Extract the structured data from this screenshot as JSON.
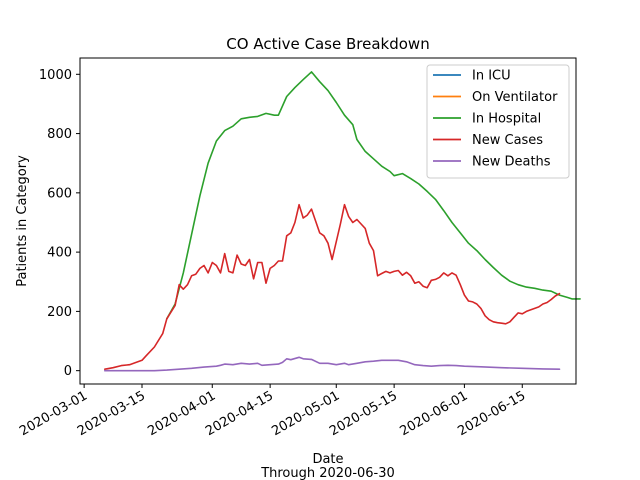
{
  "chart_data": {
    "type": "line",
    "title": "CO Active Case Breakdown",
    "xlabel": "Date",
    "xlabel_sub": "Through 2020-06-30",
    "ylabel": "Patients in Category",
    "xlim": [
      "2020-02-29",
      "2020-06-28"
    ],
    "ylim": [
      -45,
      1055
    ],
    "x_ticks": [
      "2020-03-01",
      "2020-03-15",
      "2020-04-01",
      "2020-04-15",
      "2020-05-01",
      "2020-05-15",
      "2020-06-01",
      "2020-06-15"
    ],
    "y_ticks": [
      0,
      200,
      400,
      600,
      800,
      1000
    ],
    "legend_position": "upper right",
    "grid": false,
    "series": [
      {
        "name": "In ICU",
        "color": "#1f77b4",
        "points": []
      },
      {
        "name": "On Ventilator",
        "color": "#ff7f0e",
        "points": []
      },
      {
        "name": "In Hospital",
        "color": "#2ca02c",
        "points": [
          [
            "2020-03-21",
            175
          ],
          [
            "2020-03-23",
            225
          ],
          [
            "2020-03-25",
            330
          ],
          [
            "2020-03-27",
            460
          ],
          [
            "2020-03-29",
            590
          ],
          [
            "2020-03-31",
            700
          ],
          [
            "2020-04-02",
            775
          ],
          [
            "2020-04-04",
            810
          ],
          [
            "2020-04-06",
            825
          ],
          [
            "2020-04-08",
            850
          ],
          [
            "2020-04-10",
            855
          ],
          [
            "2020-04-12",
            858
          ],
          [
            "2020-04-14",
            868
          ],
          [
            "2020-04-16",
            862
          ],
          [
            "2020-04-17",
            862
          ],
          [
            "2020-04-19",
            925
          ],
          [
            "2020-04-21",
            955
          ],
          [
            "2020-04-23",
            982
          ],
          [
            "2020-04-25",
            1008
          ],
          [
            "2020-04-27",
            975
          ],
          [
            "2020-04-29",
            945
          ],
          [
            "2020-05-01",
            905
          ],
          [
            "2020-05-03",
            862
          ],
          [
            "2020-05-05",
            830
          ],
          [
            "2020-05-06",
            780
          ],
          [
            "2020-05-08",
            740
          ],
          [
            "2020-05-10",
            715
          ],
          [
            "2020-05-12",
            690
          ],
          [
            "2020-05-14",
            672
          ],
          [
            "2020-05-15",
            658
          ],
          [
            "2020-05-17",
            665
          ],
          [
            "2020-05-19",
            648
          ],
          [
            "2020-05-21",
            630
          ],
          [
            "2020-05-23",
            605
          ],
          [
            "2020-05-25",
            578
          ],
          [
            "2020-05-27",
            540
          ],
          [
            "2020-05-29",
            500
          ],
          [
            "2020-05-31",
            465
          ],
          [
            "2020-06-02",
            430
          ],
          [
            "2020-06-04",
            405
          ],
          [
            "2020-06-06",
            375
          ],
          [
            "2020-06-08",
            348
          ],
          [
            "2020-06-10",
            322
          ],
          [
            "2020-06-12",
            302
          ],
          [
            "2020-06-14",
            290
          ],
          [
            "2020-06-16",
            282
          ],
          [
            "2020-06-18",
            278
          ],
          [
            "2020-06-20",
            272
          ],
          [
            "2020-06-22",
            268
          ],
          [
            "2020-06-24",
            255
          ],
          [
            "2020-06-26",
            247
          ],
          [
            "2020-06-27",
            242
          ],
          [
            "2020-06-29",
            242
          ]
        ]
      },
      {
        "name": "New Cases",
        "color": "#d62728",
        "points": [
          [
            "2020-03-06",
            5
          ],
          [
            "2020-03-08",
            10
          ],
          [
            "2020-03-10",
            17
          ],
          [
            "2020-03-12",
            20
          ],
          [
            "2020-03-13",
            25
          ],
          [
            "2020-03-15",
            35
          ],
          [
            "2020-03-16",
            50
          ],
          [
            "2020-03-18",
            80
          ],
          [
            "2020-03-20",
            125
          ],
          [
            "2020-03-21",
            175
          ],
          [
            "2020-03-23",
            220
          ],
          [
            "2020-03-24",
            290
          ],
          [
            "2020-03-25",
            275
          ],
          [
            "2020-03-26",
            290
          ],
          [
            "2020-03-27",
            320
          ],
          [
            "2020-03-28",
            325
          ],
          [
            "2020-03-29",
            345
          ],
          [
            "2020-03-30",
            355
          ],
          [
            "2020-03-31",
            330
          ],
          [
            "2020-04-01",
            365
          ],
          [
            "2020-04-02",
            355
          ],
          [
            "2020-04-03",
            330
          ],
          [
            "2020-04-04",
            395
          ],
          [
            "2020-04-05",
            335
          ],
          [
            "2020-04-06",
            330
          ],
          [
            "2020-04-07",
            390
          ],
          [
            "2020-04-08",
            360
          ],
          [
            "2020-04-09",
            355
          ],
          [
            "2020-04-10",
            375
          ],
          [
            "2020-04-11",
            310
          ],
          [
            "2020-04-12",
            365
          ],
          [
            "2020-04-13",
            365
          ],
          [
            "2020-04-14",
            295
          ],
          [
            "2020-04-15",
            345
          ],
          [
            "2020-04-16",
            355
          ],
          [
            "2020-04-17",
            370
          ],
          [
            "2020-04-18",
            370
          ],
          [
            "2020-04-19",
            455
          ],
          [
            "2020-04-20",
            465
          ],
          [
            "2020-04-21",
            500
          ],
          [
            "2020-04-22",
            560
          ],
          [
            "2020-04-23",
            515
          ],
          [
            "2020-04-24",
            525
          ],
          [
            "2020-04-25",
            545
          ],
          [
            "2020-04-26",
            505
          ],
          [
            "2020-04-27",
            465
          ],
          [
            "2020-04-28",
            455
          ],
          [
            "2020-04-29",
            430
          ],
          [
            "2020-04-30",
            375
          ],
          [
            "2020-05-02",
            495
          ],
          [
            "2020-05-03",
            560
          ],
          [
            "2020-05-04",
            520
          ],
          [
            "2020-05-05",
            500
          ],
          [
            "2020-05-06",
            510
          ],
          [
            "2020-05-07",
            495
          ],
          [
            "2020-05-08",
            480
          ],
          [
            "2020-05-09",
            430
          ],
          [
            "2020-05-10",
            405
          ],
          [
            "2020-05-11",
            320
          ],
          [
            "2020-05-12",
            328
          ],
          [
            "2020-05-13",
            335
          ],
          [
            "2020-05-14",
            330
          ],
          [
            "2020-05-15",
            335
          ],
          [
            "2020-05-16",
            338
          ],
          [
            "2020-05-17",
            322
          ],
          [
            "2020-05-18",
            332
          ],
          [
            "2020-05-19",
            320
          ],
          [
            "2020-05-20",
            295
          ],
          [
            "2020-05-21",
            300
          ],
          [
            "2020-05-22",
            285
          ],
          [
            "2020-05-23",
            280
          ],
          [
            "2020-05-24",
            305
          ],
          [
            "2020-05-25",
            308
          ],
          [
            "2020-05-26",
            315
          ],
          [
            "2020-05-27",
            330
          ],
          [
            "2020-05-28",
            320
          ],
          [
            "2020-05-29",
            330
          ],
          [
            "2020-05-30",
            322
          ],
          [
            "2020-05-31",
            290
          ],
          [
            "2020-06-01",
            255
          ],
          [
            "2020-06-02",
            235
          ],
          [
            "2020-06-03",
            232
          ],
          [
            "2020-06-04",
            225
          ],
          [
            "2020-06-05",
            210
          ],
          [
            "2020-06-06",
            185
          ],
          [
            "2020-06-07",
            172
          ],
          [
            "2020-06-08",
            165
          ],
          [
            "2020-06-09",
            162
          ],
          [
            "2020-06-10",
            160
          ],
          [
            "2020-06-11",
            158
          ],
          [
            "2020-06-12",
            165
          ],
          [
            "2020-06-13",
            180
          ],
          [
            "2020-06-14",
            195
          ],
          [
            "2020-06-15",
            192
          ],
          [
            "2020-06-16",
            200
          ],
          [
            "2020-06-17",
            205
          ],
          [
            "2020-06-18",
            210
          ],
          [
            "2020-06-19",
            215
          ],
          [
            "2020-06-20",
            225
          ],
          [
            "2020-06-21",
            230
          ],
          [
            "2020-06-22",
            240
          ],
          [
            "2020-06-23",
            252
          ],
          [
            "2020-06-24",
            260
          ]
        ]
      },
      {
        "name": "New Deaths",
        "color": "#9467bd",
        "points": [
          [
            "2020-03-06",
            0
          ],
          [
            "2020-03-12",
            0
          ],
          [
            "2020-03-18",
            0
          ],
          [
            "2020-03-21",
            2
          ],
          [
            "2020-03-24",
            5
          ],
          [
            "2020-03-27",
            8
          ],
          [
            "2020-03-30",
            12
          ],
          [
            "2020-04-02",
            15
          ],
          [
            "2020-04-03",
            18
          ],
          [
            "2020-04-04",
            22
          ],
          [
            "2020-04-06",
            20
          ],
          [
            "2020-04-08",
            25
          ],
          [
            "2020-04-10",
            22
          ],
          [
            "2020-04-12",
            25
          ],
          [
            "2020-04-13",
            18
          ],
          [
            "2020-04-15",
            20
          ],
          [
            "2020-04-17",
            22
          ],
          [
            "2020-04-18",
            28
          ],
          [
            "2020-04-19",
            40
          ],
          [
            "2020-04-20",
            37
          ],
          [
            "2020-04-22",
            45
          ],
          [
            "2020-04-23",
            40
          ],
          [
            "2020-04-25",
            38
          ],
          [
            "2020-04-27",
            25
          ],
          [
            "2020-04-29",
            25
          ],
          [
            "2020-05-01",
            20
          ],
          [
            "2020-05-03",
            25
          ],
          [
            "2020-05-04",
            20
          ],
          [
            "2020-05-06",
            25
          ],
          [
            "2020-05-08",
            30
          ],
          [
            "2020-05-10",
            32
          ],
          [
            "2020-05-12",
            35
          ],
          [
            "2020-05-14",
            35
          ],
          [
            "2020-05-16",
            35
          ],
          [
            "2020-05-18",
            30
          ],
          [
            "2020-05-20",
            20
          ],
          [
            "2020-05-22",
            17
          ],
          [
            "2020-05-24",
            15
          ],
          [
            "2020-05-26",
            17
          ],
          [
            "2020-05-28",
            18
          ],
          [
            "2020-05-30",
            17
          ],
          [
            "2020-06-01",
            15
          ],
          [
            "2020-06-05",
            13
          ],
          [
            "2020-06-10",
            10
          ],
          [
            "2020-06-15",
            8
          ],
          [
            "2020-06-20",
            6
          ],
          [
            "2020-06-24",
            5
          ]
        ]
      }
    ]
  }
}
